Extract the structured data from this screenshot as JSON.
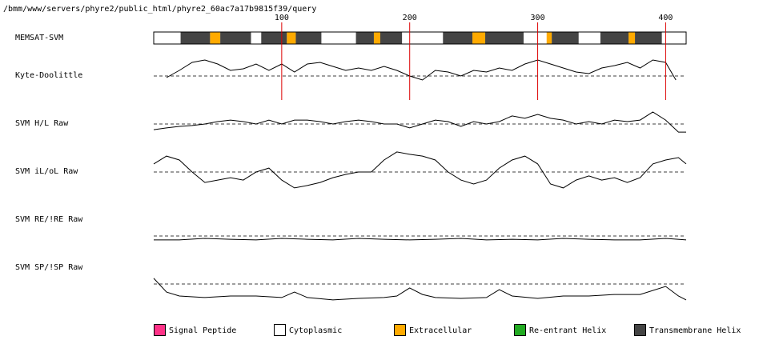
{
  "chart_data": {
    "type": "memsat",
    "title": "/bmm/www/servers/phyre2/public_html/phyre2_60ac7a17b9815f39/query",
    "xlim": [
      0,
      416
    ],
    "xticks": [
      100,
      200,
      300,
      400
    ],
    "tick_color": "#dd0000",
    "bar_label": "MEMSAT-SVM",
    "legend": [
      {
        "name": "Signal Peptide",
        "color": "#ff3388",
        "segments": []
      },
      {
        "name": "Cytoplasmic",
        "color": "#ffffff",
        "segments": [
          [
            0,
            21
          ],
          [
            76,
            84
          ],
          [
            131,
            158
          ],
          [
            194,
            226
          ],
          [
            289,
            307
          ],
          [
            332,
            349
          ],
          [
            397,
            416
          ]
        ]
      },
      {
        "name": "Extracellular",
        "color": "#ffaa00",
        "segments": [
          [
            44,
            52
          ],
          [
            104,
            111
          ],
          [
            172,
            177
          ],
          [
            249,
            259
          ],
          [
            307,
            311
          ],
          [
            371,
            376
          ]
        ]
      },
      {
        "name": "Re-entrant Helix",
        "color": "#22aa22",
        "segments": []
      },
      {
        "name": "Transmembrane Helix",
        "color": "#444444",
        "segments": [
          [
            21,
            44
          ],
          [
            52,
            76
          ],
          [
            84,
            104
          ],
          [
            111,
            131
          ],
          [
            158,
            172
          ],
          [
            177,
            194
          ],
          [
            226,
            249
          ],
          [
            259,
            289
          ],
          [
            311,
            332
          ],
          [
            349,
            371
          ],
          [
            376,
            397
          ]
        ]
      }
    ],
    "series": [
      {
        "name": "Kyte-Doolittle",
        "color": "#000000",
        "baseline": 0,
        "ylim": [
          -2,
          2
        ],
        "x": [
          10,
          20,
          30,
          40,
          50,
          60,
          70,
          80,
          90,
          100,
          110,
          120,
          130,
          140,
          150,
          160,
          170,
          180,
          190,
          200,
          210,
          220,
          230,
          240,
          250,
          260,
          270,
          280,
          290,
          300,
          310,
          320,
          330,
          340,
          350,
          360,
          370,
          380,
          390,
          400,
          408
        ],
        "values": [
          -0.13,
          0.47,
          1.13,
          1.33,
          1.0,
          0.47,
          0.6,
          1.0,
          0.47,
          1.0,
          0.33,
          1.0,
          1.13,
          0.8,
          0.47,
          0.67,
          0.47,
          0.8,
          0.47,
          0,
          -0.33,
          0.47,
          0.33,
          0,
          0.47,
          0.33,
          0.67,
          0.47,
          1.0,
          1.33,
          1.0,
          0.67,
          0.33,
          0.2,
          0.67,
          0.87,
          1.13,
          0.67,
          1.33,
          1.13,
          -0.33
        ]
      },
      {
        "name": "SVM H/L Raw",
        "color": "#000000",
        "baseline": 0,
        "ylim": [
          -2,
          2
        ],
        "x": [
          0,
          10,
          20,
          30,
          40,
          50,
          60,
          70,
          80,
          90,
          100,
          110,
          120,
          130,
          140,
          150,
          160,
          170,
          180,
          190,
          200,
          210,
          220,
          230,
          240,
          250,
          260,
          270,
          280,
          290,
          300,
          310,
          320,
          330,
          340,
          350,
          360,
          370,
          380,
          390,
          400,
          410,
          416
        ],
        "values": [
          -0.47,
          -0.33,
          -0.2,
          -0.13,
          0,
          0.2,
          0.33,
          0.2,
          0,
          0.33,
          0,
          0.33,
          0.33,
          0.2,
          0,
          0.2,
          0.33,
          0.2,
          0,
          0,
          -0.33,
          0,
          0.33,
          0.2,
          -0.2,
          0.2,
          0,
          0.2,
          0.67,
          0.47,
          0.8,
          0.47,
          0.33,
          0,
          0.2,
          0,
          0.33,
          0.2,
          0.33,
          1.0,
          0.33,
          -0.67,
          -0.67
        ]
      },
      {
        "name": "SVM iL/oL Raw",
        "color": "#000000",
        "baseline": 0,
        "ylim": [
          -2,
          2
        ],
        "x": [
          0,
          10,
          20,
          30,
          40,
          50,
          60,
          70,
          80,
          90,
          100,
          110,
          120,
          130,
          140,
          150,
          160,
          170,
          180,
          190,
          200,
          210,
          220,
          230,
          240,
          250,
          260,
          270,
          280,
          290,
          300,
          310,
          320,
          330,
          340,
          350,
          360,
          370,
          380,
          390,
          400,
          410,
          416
        ],
        "values": [
          0.67,
          1.33,
          1.0,
          0,
          -0.87,
          -0.67,
          -0.47,
          -0.67,
          0,
          0.33,
          -0.67,
          -1.33,
          -1.13,
          -0.87,
          -0.47,
          -0.2,
          0,
          0,
          1.0,
          1.67,
          1.47,
          1.33,
          1.0,
          0,
          -0.67,
          -1.0,
          -0.67,
          0.33,
          1.0,
          1.33,
          0.67,
          -1.0,
          -1.33,
          -0.67,
          -0.33,
          -0.67,
          -0.47,
          -0.87,
          -0.47,
          0.67,
          1.0,
          1.2,
          0.67
        ]
      },
      {
        "name": "SVM RE/!RE Raw",
        "color": "#000000",
        "baseline": 0,
        "ylim": [
          -2,
          2
        ],
        "x": [
          0,
          20,
          40,
          60,
          80,
          100,
          120,
          140,
          160,
          180,
          200,
          220,
          240,
          260,
          280,
          300,
          320,
          340,
          360,
          380,
          400,
          416
        ],
        "values": [
          -0.33,
          -0.33,
          -0.2,
          -0.27,
          -0.33,
          -0.2,
          -0.27,
          -0.33,
          -0.2,
          -0.27,
          -0.33,
          -0.27,
          -0.2,
          -0.33,
          -0.27,
          -0.33,
          -0.2,
          -0.27,
          -0.33,
          -0.33,
          -0.2,
          -0.33
        ]
      },
      {
        "name": "SVM SP/!SP Raw",
        "color": "#000000",
        "baseline": 0,
        "ylim": [
          -2,
          2
        ],
        "x": [
          0,
          10,
          20,
          40,
          60,
          80,
          100,
          110,
          120,
          140,
          160,
          180,
          190,
          200,
          210,
          220,
          240,
          260,
          270,
          280,
          300,
          320,
          340,
          360,
          380,
          400,
          410,
          416
        ],
        "values": [
          0.47,
          -0.67,
          -1.0,
          -1.13,
          -1.0,
          -1.0,
          -1.13,
          -0.67,
          -1.13,
          -1.33,
          -1.2,
          -1.13,
          -1.0,
          -0.33,
          -0.87,
          -1.13,
          -1.2,
          -1.13,
          -0.47,
          -1.0,
          -1.2,
          -1.0,
          -1.0,
          -0.87,
          -0.87,
          -0.2,
          -1.0,
          -1.33
        ]
      }
    ]
  }
}
